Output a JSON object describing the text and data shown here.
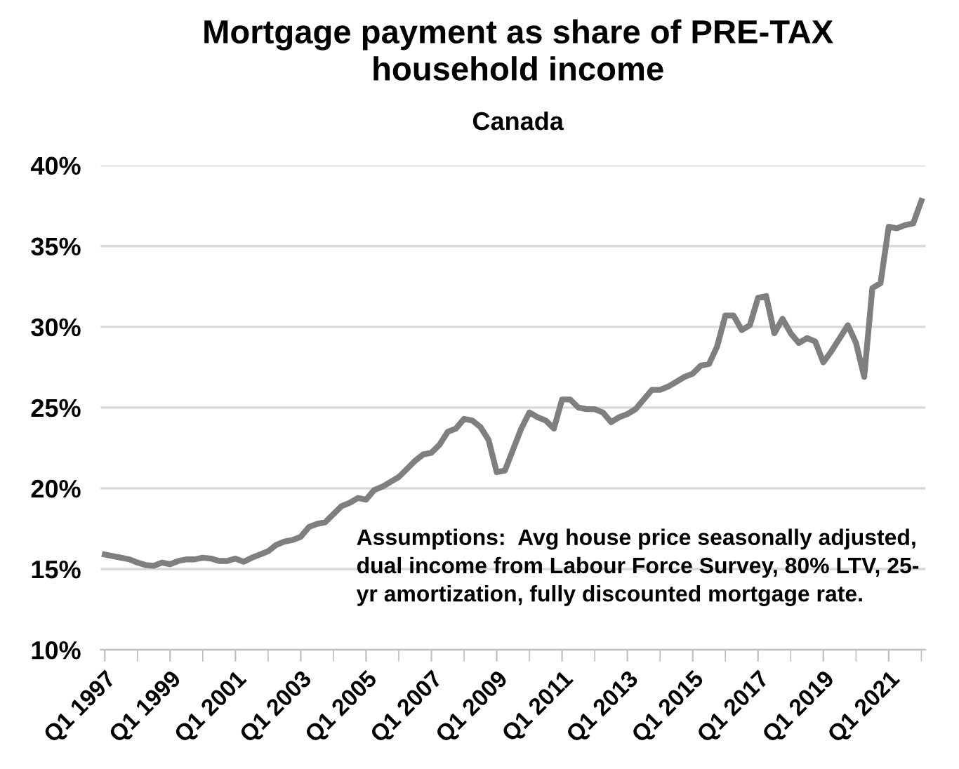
{
  "chart_data": {
    "type": "line",
    "title": "Mortgage payment as share of PRE-TAX\nhousehold income",
    "subtitle": "Canada",
    "categories": [
      "Q1 1997",
      null,
      null,
      null,
      null,
      null,
      null,
      null,
      "Q1 1999",
      null,
      null,
      null,
      null,
      null,
      null,
      null,
      "Q1 2001",
      null,
      null,
      null,
      null,
      null,
      null,
      null,
      "Q1 2003",
      null,
      null,
      null,
      null,
      null,
      null,
      null,
      "Q1 2005",
      null,
      null,
      null,
      null,
      null,
      null,
      null,
      "Q1 2007",
      null,
      null,
      null,
      null,
      null,
      null,
      null,
      "Q1 2009",
      null,
      null,
      null,
      null,
      null,
      null,
      null,
      "Q1 2011",
      null,
      null,
      null,
      null,
      null,
      null,
      null,
      "Q1 2013",
      null,
      null,
      null,
      null,
      null,
      null,
      null,
      "Q1 2015",
      null,
      null,
      null,
      null,
      null,
      null,
      null,
      "Q1 2017",
      null,
      null,
      null,
      null,
      null,
      null,
      null,
      "Q1 2019",
      null,
      null,
      null,
      null,
      null,
      null,
      null,
      "Q1 2021",
      null,
      null,
      null,
      null
    ],
    "series": [
      {
        "color": "#7f7f7f",
        "values": [
          15.9,
          15.8,
          15.7,
          15.6,
          15.4,
          15.25,
          15.2,
          15.4,
          15.3,
          15.5,
          15.6,
          15.6,
          15.7,
          15.65,
          15.5,
          15.5,
          15.65,
          15.45,
          15.7,
          15.9,
          16.1,
          16.5,
          16.7,
          16.8,
          17.0,
          17.6,
          17.8,
          17.9,
          18.4,
          18.9,
          19.1,
          19.4,
          19.3,
          19.9,
          20.1,
          20.4,
          20.7,
          21.2,
          21.7,
          22.1,
          22.2,
          22.7,
          23.5,
          23.7,
          24.3,
          24.2,
          23.8,
          23.0,
          21.0,
          21.1,
          22.4,
          23.7,
          24.7,
          24.4,
          24.2,
          23.7,
          25.5,
          25.5,
          25.0,
          24.9,
          24.9,
          24.7,
          24.1,
          24.4,
          24.6,
          24.9,
          25.5,
          26.1,
          26.1,
          26.3,
          26.6,
          26.9,
          27.1,
          27.6,
          27.7,
          28.8,
          30.7,
          30.7,
          29.8,
          30.1,
          31.8,
          31.9,
          29.6,
          30.5,
          29.6,
          29.0,
          29.3,
          29.1,
          27.8,
          28.5,
          29.3,
          30.1,
          29.0,
          26.9,
          32.4,
          32.7,
          36.2,
          36.1,
          36.3,
          36.4,
          37.8
        ]
      }
    ],
    "ylim": [
      10,
      40
    ],
    "yticks": [
      {
        "value": 10,
        "label": "10%"
      },
      {
        "value": 15,
        "label": "15%"
      },
      {
        "value": 20,
        "label": "20%"
      },
      {
        "value": 25,
        "label": "25%"
      },
      {
        "value": 30,
        "label": "30%"
      },
      {
        "value": 35,
        "label": "35%"
      },
      {
        "value": 40,
        "label": "40%"
      }
    ],
    "grid": "y",
    "marker": "none",
    "line_style": "solid",
    "annotations": [
      "Assumptions:  Avg house price seasonally adjusted,\ndual income from Labour Force Survey, 80% LTV, 25-\nyr amortization, fully discounted mortgage rate."
    ]
  }
}
